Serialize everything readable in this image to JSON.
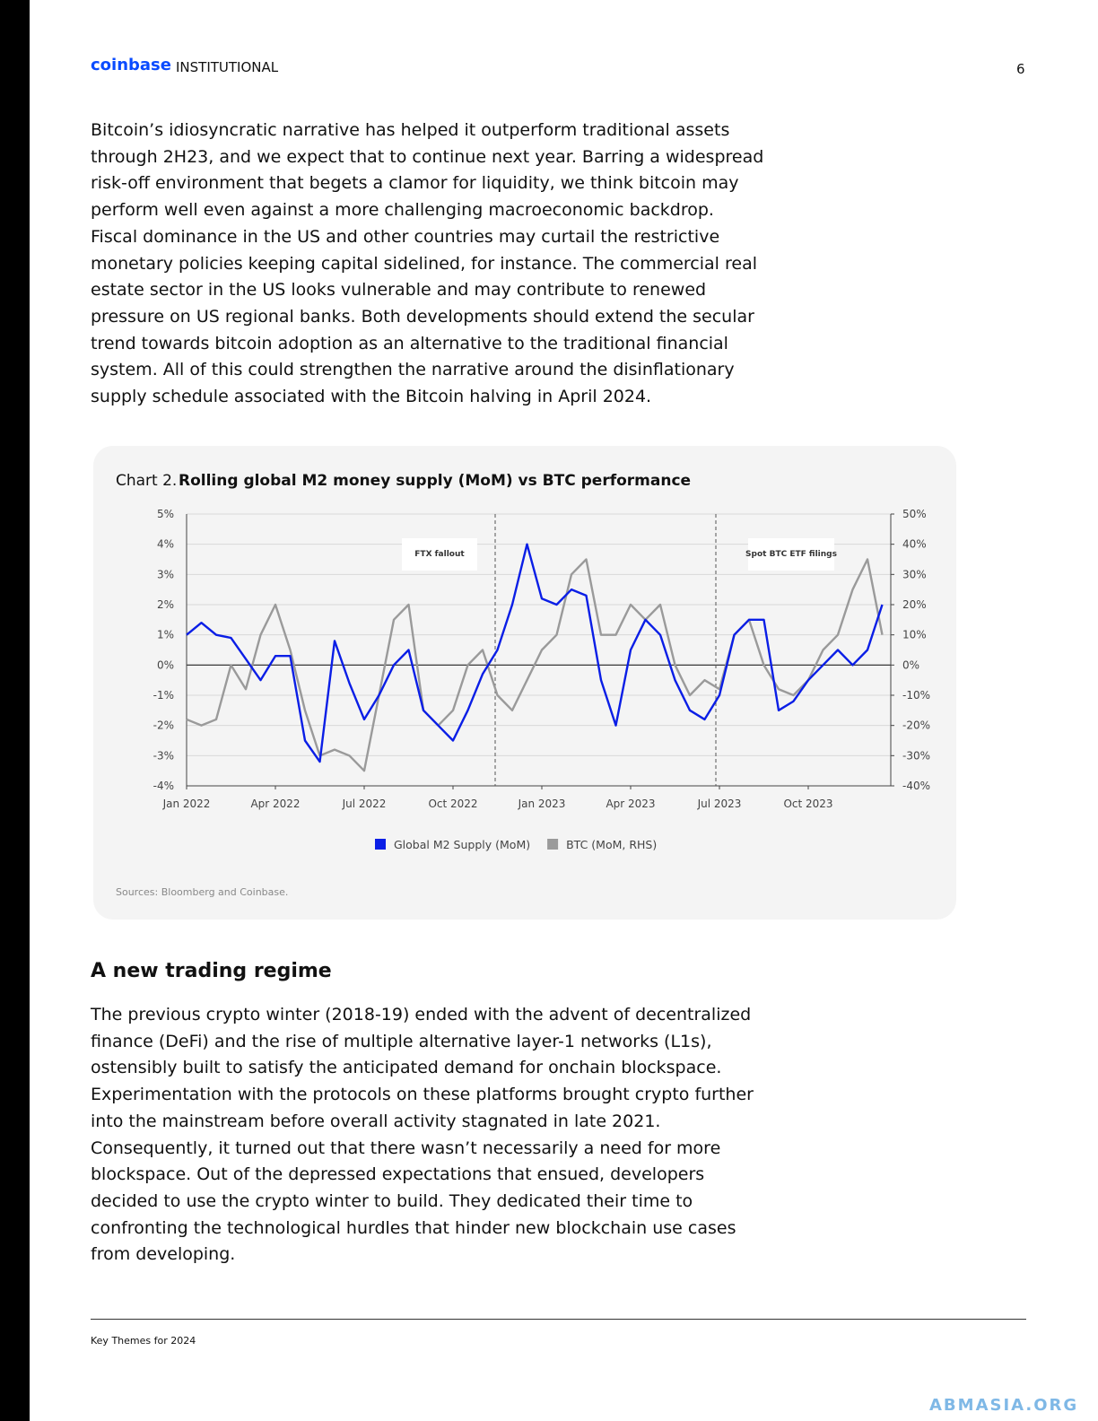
{
  "header": {
    "brand": "coinbase",
    "brand_sub": "INSTITUTIONAL",
    "page_number": "6"
  },
  "paragraph_1": [
    "Bitcoin’s idiosyncratic narrative has helped it outperform traditional assets",
    "through 2H23, and we expect that to continue next year. Barring a widespread",
    "risk-off environment that begets a clamor for liquidity, we think bitcoin may",
    "perform well even against a more challenging macroeconomic backdrop.",
    "Fiscal dominance in the US and other countries may curtail the restrictive",
    "monetary policies keeping capital sidelined, for instance. The commercial real",
    "estate sector in the US looks vulnerable and may contribute to renewed",
    "pressure on US regional banks. Both developments should extend the secular",
    "trend towards bitcoin adoption as an alternative to the traditional financial",
    "system. All of this could strengthen the narrative around the disinflationary",
    "supply schedule associated with the Bitcoin halving in April 2024."
  ],
  "chart_data": {
    "type": "line",
    "title_prefix": "Chart 2.",
    "title": "Rolling global M2 money supply (MoM) vs BTC performance",
    "source": "Sources: Bloomberg and Coinbase.",
    "categories": [
      "Jan 2022",
      null,
      null,
      null,
      null,
      null,
      "Apr 2022",
      null,
      null,
      null,
      null,
      null,
      "Jul 2022",
      null,
      null,
      null,
      null,
      null,
      "Oct 2022",
      null,
      null,
      null,
      null,
      null,
      "Jan 2023",
      null,
      null,
      null,
      null,
      null,
      "Apr 2023",
      null,
      null,
      null,
      null,
      null,
      "Jul 2023",
      null,
      null,
      null,
      null,
      null,
      "Oct 2023",
      null,
      null,
      null,
      null,
      null
    ],
    "series": [
      {
        "name": "Global M2 Supply (MoM)",
        "color": "#0a1ee6",
        "axis": "y",
        "values": [
          1.0,
          1.4,
          1.0,
          0.9,
          0.2,
          -0.5,
          0.3,
          0.3,
          -2.5,
          -3.2,
          0.8,
          -0.6,
          -1.8,
          -1.0,
          0.0,
          0.5,
          -1.5,
          -2.0,
          -2.5,
          -1.5,
          -0.3,
          0.5,
          2.0,
          4.0,
          2.2,
          2.0,
          2.5,
          2.3,
          -0.5,
          -2.0,
          0.5,
          1.5,
          1.0,
          -0.5,
          -1.5,
          -1.8,
          -1.0,
          1.0,
          1.5,
          1.5,
          -1.5,
          -1.2,
          -0.5,
          0.0,
          0.5,
          0.0,
          0.5,
          2.0
        ]
      },
      {
        "name": "BTC (MoM, RHS)",
        "color": "#9a9a9a",
        "axis": "y2",
        "values": [
          -18,
          -20,
          -18,
          0,
          -8,
          10,
          20,
          5,
          -15,
          -30,
          -28,
          -30,
          -35,
          -10,
          15,
          20,
          -15,
          -20,
          -15,
          0,
          5,
          -10,
          -15,
          -5,
          5,
          10,
          30,
          35,
          10,
          10,
          20,
          15,
          20,
          0,
          -10,
          -5,
          -8,
          10,
          15,
          0,
          -8,
          -10,
          -5,
          5,
          10,
          25,
          35,
          10
        ]
      }
    ],
    "ylim": [
      -4,
      5
    ],
    "yticks": [
      {
        "value": -4,
        "label": "-4%"
      },
      {
        "value": -3,
        "label": "-3%"
      },
      {
        "value": -2,
        "label": "-2%"
      },
      {
        "value": -1,
        "label": "-1%"
      },
      {
        "value": 0,
        "label": "0%"
      },
      {
        "value": 1,
        "label": "1%"
      },
      {
        "value": 2,
        "label": "2%"
      },
      {
        "value": 3,
        "label": "3%"
      },
      {
        "value": 4,
        "label": "4%"
      },
      {
        "value": 5,
        "label": "5%"
      }
    ],
    "y2lim": [
      -40,
      50
    ],
    "y2ticks": [
      {
        "value": -40,
        "label": "-40%"
      },
      {
        "value": -30,
        "label": "-30%"
      },
      {
        "value": -20,
        "label": "-20%"
      },
      {
        "value": -10,
        "label": "-10%"
      },
      {
        "value": 0,
        "label": "0%"
      },
      {
        "value": 10,
        "label": "10%"
      },
      {
        "value": 20,
        "label": "20%"
      },
      {
        "value": 30,
        "label": "30%"
      },
      {
        "value": 40,
        "label": "40%"
      },
      {
        "value": 50,
        "label": "50%"
      }
    ],
    "grid": true,
    "annotations": [
      "FTX fallout",
      "Spot BTC ETF filings"
    ]
  },
  "heading": "A new trading regime",
  "paragraph_2": [
    "The previous crypto winter (2018-19) ended with the advent of decentralized",
    "finance (DeFi) and the rise of multiple alternative layer-1 networks (L1s),",
    "ostensibly built to satisfy the anticipated demand for onchain blockspace.",
    "Experimentation with the protocols on these platforms brought crypto further",
    "into the mainstream before overall activity stagnated in late 2021.",
    "Consequently, it turned out that there wasn’t necessarily a need for more",
    "blockspace. Out of the depressed expectations that ensued, developers",
    "decided to use the crypto winter to build. They dedicated their time to",
    "confronting the technological hurdles that hinder new blockchain use cases",
    "from developing."
  ],
  "footer": "Key Themes for 2024",
  "watermark": "ABMASIA.ORG"
}
